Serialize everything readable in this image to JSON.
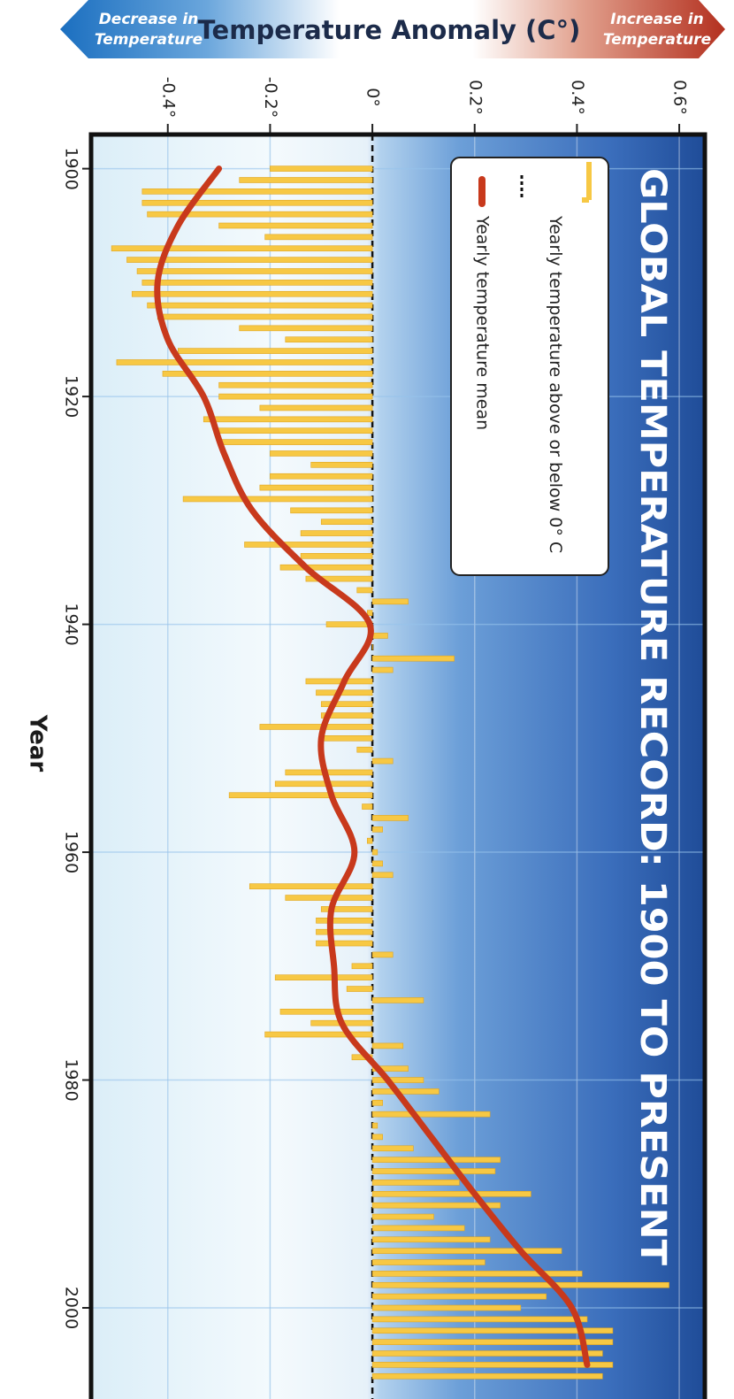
{
  "header": {
    "left": [
      "Decrease in",
      "Temperature"
    ],
    "right": [
      "Increase in",
      "Temperature"
    ]
  },
  "chart_data": {
    "type": "bar",
    "orientation": "horizontal",
    "title": "GLOBAL TEMPERATURE RECORD: 1900 TO PRESENT",
    "y_label": "Temperature Anomaly (C°)",
    "x_label": "Year",
    "xlim": [
      1897,
      2008
    ],
    "xticks": [
      1900,
      1920,
      1940,
      1960,
      1980,
      2000
    ],
    "ylim": [
      -0.55,
      0.65
    ],
    "yticks": [
      {
        "value": -0.4,
        "label": "-0.4°"
      },
      {
        "value": -0.2,
        "label": "-0.2°"
      },
      {
        "value": 0,
        "label": "0°"
      },
      {
        "value": 0.2,
        "label": "0.2°"
      },
      {
        "value": 0.4,
        "label": "0.4°"
      },
      {
        "value": 0.6,
        "label": "0.6°"
      }
    ],
    "grid": true,
    "series": [
      {
        "name": "Yearly temperature above or below 0° C",
        "type": "bar",
        "color": "#f7c844",
        "x": [
          1900,
          1901,
          1902,
          1903,
          1904,
          1905,
          1906,
          1907,
          1908,
          1909,
          1910,
          1911,
          1912,
          1913,
          1914,
          1915,
          1916,
          1917,
          1918,
          1919,
          1920,
          1921,
          1922,
          1923,
          1924,
          1925,
          1926,
          1927,
          1928,
          1929,
          1930,
          1931,
          1932,
          1933,
          1934,
          1935,
          1936,
          1937,
          1938,
          1939,
          1940,
          1941,
          1942,
          1943,
          1944,
          1945,
          1946,
          1947,
          1948,
          1949,
          1950,
          1951,
          1952,
          1953,
          1954,
          1955,
          1956,
          1957,
          1958,
          1959,
          1960,
          1961,
          1962,
          1963,
          1964,
          1965,
          1966,
          1967,
          1968,
          1969,
          1970,
          1971,
          1972,
          1973,
          1974,
          1975,
          1976,
          1977,
          1978,
          1979,
          1980,
          1981,
          1982,
          1983,
          1984,
          1985,
          1986,
          1987,
          1988,
          1989,
          1990,
          1991,
          1992,
          1993,
          1994,
          1995,
          1996,
          1997,
          1998,
          1999,
          2000,
          2001,
          2002,
          2003,
          2004,
          2005,
          2006
        ],
        "values": [
          -0.2,
          -0.26,
          -0.45,
          -0.45,
          -0.44,
          -0.3,
          -0.21,
          -0.51,
          -0.48,
          -0.46,
          -0.45,
          -0.47,
          -0.44,
          -0.42,
          -0.26,
          -0.17,
          -0.38,
          -0.5,
          -0.41,
          -0.3,
          -0.3,
          -0.22,
          -0.33,
          -0.31,
          -0.3,
          -0.2,
          -0.12,
          -0.2,
          -0.22,
          -0.37,
          -0.16,
          -0.1,
          -0.14,
          -0.25,
          -0.14,
          -0.18,
          -0.13,
          -0.03,
          0.07,
          -0.01,
          -0.09,
          0.03,
          0.0,
          0.16,
          0.04,
          -0.13,
          -0.11,
          -0.1,
          -0.1,
          -0.22,
          -0.1,
          -0.03,
          0.04,
          -0.17,
          -0.19,
          -0.28,
          -0.02,
          0.07,
          0.02,
          -0.01,
          0.01,
          0.02,
          0.04,
          -0.24,
          -0.17,
          -0.1,
          -0.11,
          -0.11,
          -0.11,
          0.04,
          -0.04,
          -0.19,
          -0.05,
          0.1,
          -0.18,
          -0.12,
          -0.21,
          0.06,
          -0.04,
          0.07,
          0.1,
          0.13,
          0.02,
          0.23,
          0.01,
          0.02,
          0.08,
          0.25,
          0.24,
          0.17,
          0.31,
          0.25,
          0.12,
          0.18,
          0.23,
          0.37,
          0.22,
          0.41,
          0.58,
          0.34,
          0.29,
          0.42,
          0.47,
          0.47,
          0.45,
          0.47,
          0.45
        ]
      },
      {
        "name": "Yearly temperature mean",
        "type": "line",
        "color": "#c8391c",
        "x": [
          1900,
          1905,
          1910,
          1915,
          1920,
          1925,
          1930,
          1935,
          1940,
          1945,
          1950,
          1955,
          1960,
          1965,
          1970,
          1975,
          1980,
          1985,
          1990,
          1995,
          2000,
          2005
        ],
        "values": [
          -0.3,
          -0.38,
          -0.42,
          -0.4,
          -0.33,
          -0.29,
          -0.235,
          -0.13,
          -0.005,
          -0.055,
          -0.1,
          -0.08,
          -0.035,
          -0.08,
          -0.075,
          -0.06,
          0.03,
          0.115,
          0.2,
          0.29,
          0.39,
          0.42
        ]
      }
    ]
  }
}
